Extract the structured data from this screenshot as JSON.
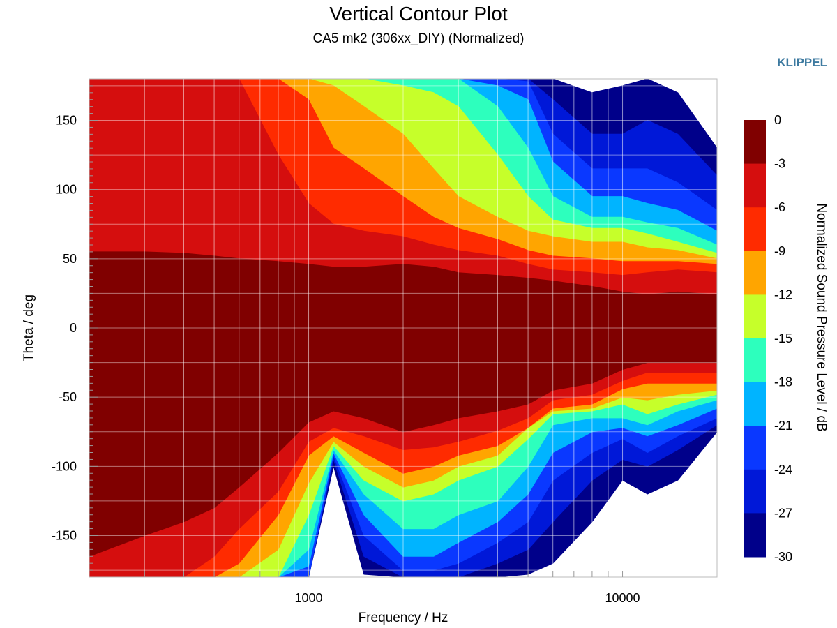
{
  "chart_data": {
    "type": "heatmap",
    "title": "Vertical Contour Plot",
    "subtitle": "CA5 mk2 (306xx_DIY) (Normalized)",
    "brand": "KLIPPEL",
    "xlabel": "Frequency / Hz",
    "ylabel": "Theta / deg",
    "colorbar_label": "Normalized Sound Pressure Level / dB",
    "x_scale": "log",
    "xlim": [
      200,
      20000
    ],
    "ylim": [
      -180,
      180
    ],
    "x_ticks": [
      {
        "value": 1000,
        "label": "1000"
      },
      {
        "value": 10000,
        "label": "10000"
      }
    ],
    "y_ticks": [
      {
        "value": 150,
        "label": "150"
      },
      {
        "value": 100,
        "label": "100"
      },
      {
        "value": 50,
        "label": "50"
      },
      {
        "value": 0,
        "label": "0"
      },
      {
        "value": -50,
        "label": "-50"
      },
      {
        "value": -100,
        "label": "-100"
      },
      {
        "value": -150,
        "label": "-150"
      }
    ],
    "grid": true,
    "colorbar": {
      "min": -30,
      "max": 0,
      "step": 3,
      "ticks": [
        "0",
        "-3",
        "-6",
        "-9",
        "-12",
        "-15",
        "-18",
        "-21",
        "-24",
        "-27",
        "-30"
      ],
      "colors": [
        "#800000",
        "#d50e0e",
        "#ff2b00",
        "#ffa500",
        "#c6ff2a",
        "#2dffbd",
        "#00b4ff",
        "#0a38ff",
        "#0018d8",
        "#00008a"
      ]
    },
    "contour_limits": {
      "note_units": "theta in deg per frequency in Hz",
      "frequencies": [
        200,
        300,
        400,
        500,
        600,
        800,
        1000,
        1200,
        1500,
        2000,
        2500,
        3000,
        4000,
        5000,
        6000,
        8000,
        10000,
        12000,
        15000,
        20000
      ],
      "upper": {
        "-3": [
          55,
          55,
          54,
          52,
          50,
          48,
          46,
          44,
          44,
          46,
          44,
          40,
          38,
          36,
          34,
          30,
          26,
          24,
          26,
          24
        ],
        "-6": [
          180,
          180,
          180,
          180,
          180,
          125,
          90,
          75,
          70,
          66,
          60,
          56,
          52,
          46,
          42,
          40,
          38,
          40,
          42,
          40
        ],
        "-9": [
          180,
          180,
          180,
          180,
          180,
          180,
          165,
          130,
          115,
          95,
          80,
          72,
          64,
          56,
          52,
          50,
          48,
          48,
          48,
          46
        ],
        "-12": [
          180,
          180,
          180,
          180,
          180,
          180,
          180,
          175,
          160,
          140,
          115,
          95,
          80,
          70,
          66,
          62,
          62,
          58,
          56,
          50
        ],
        "-15": [
          180,
          180,
          180,
          180,
          180,
          180,
          180,
          180,
          180,
          175,
          170,
          160,
          125,
          95,
          78,
          72,
          72,
          68,
          62,
          54
        ],
        "-18": [
          180,
          180,
          180,
          180,
          180,
          180,
          180,
          180,
          180,
          180,
          180,
          180,
          160,
          130,
          95,
          80,
          80,
          76,
          72,
          60
        ],
        "-21": [
          180,
          180,
          180,
          180,
          180,
          180,
          180,
          180,
          180,
          180,
          180,
          180,
          175,
          165,
          120,
          95,
          95,
          90,
          85,
          70
        ],
        "-24": [
          180,
          180,
          180,
          180,
          180,
          180,
          180,
          180,
          180,
          180,
          180,
          180,
          180,
          178,
          140,
          115,
          115,
          115,
          105,
          85
        ],
        "-27": [
          180,
          180,
          180,
          180,
          180,
          180,
          180,
          180,
          180,
          180,
          180,
          180,
          180,
          180,
          165,
          140,
          140,
          150,
          140,
          110
        ],
        "-30": [
          180,
          180,
          180,
          180,
          180,
          180,
          180,
          180,
          180,
          180,
          180,
          180,
          180,
          180,
          180,
          170,
          175,
          180,
          170,
          130
        ]
      },
      "lower": {
        "-3": [
          -165,
          -150,
          -140,
          -130,
          -115,
          -90,
          -68,
          -60,
          -65,
          -75,
          -70,
          -65,
          -60,
          -55,
          -45,
          -40,
          -30,
          -25,
          -25,
          -25
        ],
        "-6": [
          -180,
          -180,
          -180,
          -165,
          -145,
          -118,
          -82,
          -72,
          -78,
          -88,
          -86,
          -82,
          -74,
          -65,
          -52,
          -48,
          -38,
          -32,
          -32,
          -32
        ],
        "-9": [
          -180,
          -180,
          -180,
          -180,
          -170,
          -135,
          -92,
          -78,
          -90,
          -105,
          -100,
          -92,
          -85,
          -72,
          -58,
          -55,
          -44,
          -40,
          -40,
          -40
        ],
        "-12": [
          -180,
          -180,
          -180,
          -180,
          -180,
          -160,
          -112,
          -82,
          -100,
          -115,
          -110,
          -100,
          -92,
          -72,
          -60,
          -58,
          -50,
          -52,
          -48,
          -45
        ],
        "-15": [
          -180,
          -180,
          -180,
          -180,
          -180,
          -180,
          -135,
          -85,
          -110,
          -125,
          -120,
          -110,
          -100,
          -80,
          -62,
          -60,
          -55,
          -62,
          -55,
          -48
        ],
        "-18": [
          -180,
          -180,
          -180,
          -180,
          -180,
          -180,
          -160,
          -88,
          -120,
          -145,
          -145,
          -135,
          -125,
          -100,
          -70,
          -65,
          -65,
          -70,
          -60,
          -52
        ],
        "-21": [
          -180,
          -180,
          -180,
          -180,
          -180,
          -180,
          -172,
          -90,
          -135,
          -165,
          -165,
          -155,
          -140,
          -120,
          -90,
          -75,
          -72,
          -78,
          -70,
          -58
        ],
        "-24": [
          -180,
          -180,
          -180,
          -180,
          -180,
          -180,
          -180,
          -92,
          -150,
          -175,
          -175,
          -170,
          -155,
          -140,
          -110,
          -90,
          -80,
          -90,
          -78,
          -65
        ],
        "-27": [
          -180,
          -180,
          -180,
          -180,
          -180,
          -180,
          -180,
          -95,
          -165,
          -180,
          -180,
          -180,
          -170,
          -160,
          -140,
          -110,
          -95,
          -100,
          -88,
          -70
        ],
        "-30": [
          -180,
          -180,
          -180,
          -180,
          -180,
          -180,
          -180,
          -100,
          -178,
          -180,
          -180,
          -180,
          -180,
          -178,
          -170,
          -140,
          -110,
          -120,
          -110,
          -75
        ]
      }
    }
  }
}
